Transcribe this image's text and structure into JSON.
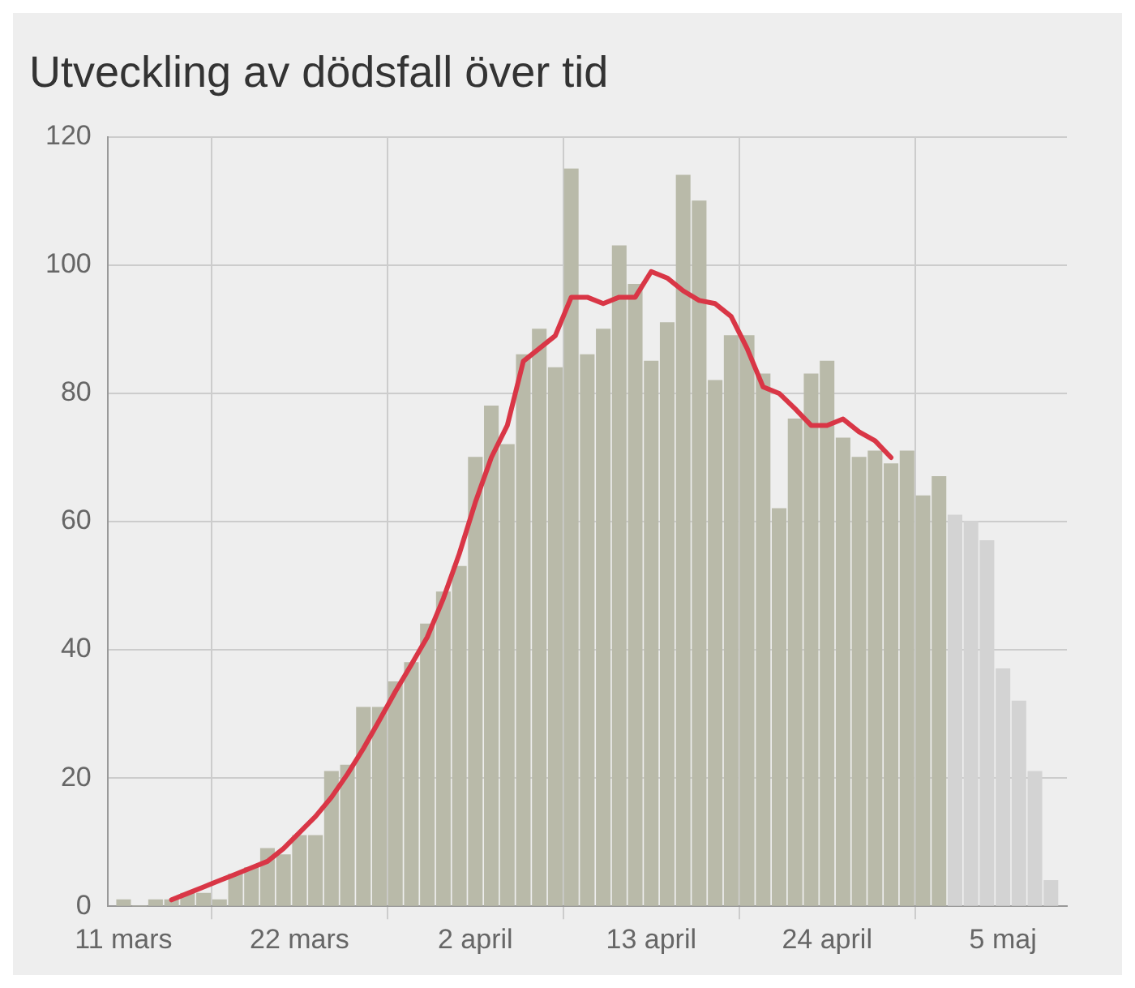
{
  "chart_data": {
    "type": "bar",
    "title": "Utveckling av dödsfall över tid",
    "x": [
      "--03-11",
      "--03-12",
      "--03-13",
      "--03-14",
      "--03-15",
      "--03-16",
      "--03-17",
      "--03-18",
      "--03-19",
      "--03-20",
      "--03-21",
      "--03-22",
      "--03-23",
      "--03-24",
      "--03-25",
      "--03-26",
      "--03-27",
      "--03-28",
      "--03-29",
      "--03-30",
      "--03-31",
      "--04-01",
      "--04-02",
      "--04-03",
      "--04-04",
      "--04-05",
      "--04-06",
      "--04-07",
      "--04-08",
      "--04-09",
      "--04-10",
      "--04-11",
      "--04-12",
      "--04-13",
      "--04-14",
      "--04-15",
      "--04-16",
      "--04-17",
      "--04-18",
      "--04-19",
      "--04-20",
      "--04-21",
      "--04-22",
      "--04-23",
      "--04-24",
      "--04-25",
      "--04-26",
      "--04-27",
      "--04-28",
      "--04-29",
      "--04-30",
      "--05-01",
      "--05-02",
      "--05-03",
      "--05-04",
      "--05-05",
      "--05-06",
      "--05-07",
      "--05-08"
    ],
    "series": [
      {
        "color": "#b9baa9",
        "values": [
          1,
          0,
          1,
          1,
          2,
          2,
          1,
          5,
          6,
          9,
          8,
          11,
          11,
          21,
          22,
          31,
          31,
          35,
          38,
          44,
          49,
          53,
          70,
          78,
          72,
          86,
          90,
          84,
          115,
          86,
          90,
          103,
          97,
          85,
          91,
          114,
          110,
          82,
          89,
          89,
          83,
          62,
          76,
          83,
          85,
          73,
          70,
          71,
          69,
          71,
          64,
          67,
          null,
          null,
          null,
          null,
          null,
          null,
          null
        ]
      },
      {
        "color": "#d3d3d3",
        "values": [
          null,
          null,
          null,
          null,
          null,
          null,
          null,
          null,
          null,
          null,
          null,
          null,
          null,
          null,
          null,
          null,
          null,
          null,
          null,
          null,
          null,
          null,
          null,
          null,
          null,
          null,
          null,
          null,
          null,
          null,
          null,
          null,
          null,
          null,
          null,
          null,
          null,
          null,
          null,
          null,
          null,
          null,
          null,
          null,
          null,
          null,
          null,
          null,
          null,
          null,
          null,
          null,
          61,
          60,
          57,
          37,
          32,
          21,
          4
        ]
      },
      {
        "type": "line",
        "color": "#d93646",
        "x": [
          "--03-14",
          "--03-15",
          "--03-16",
          "--03-17",
          "--03-18",
          "--03-19",
          "--03-20",
          "--03-21",
          "--03-22",
          "--03-23",
          "--03-24",
          "--03-25",
          "--03-26",
          "--03-27",
          "--03-28",
          "--03-29",
          "--03-30",
          "--03-31",
          "--04-01",
          "--04-02",
          "--04-03",
          "--04-04",
          "--04-05",
          "--04-06",
          "--04-07",
          "--04-08",
          "--04-09",
          "--04-10",
          "--04-11",
          "--04-12",
          "--04-13",
          "--04-14",
          "--04-15",
          "--04-16",
          "--04-17",
          "--04-18",
          "--04-19",
          "--04-20",
          "--04-21",
          "--04-22",
          "--04-23",
          "--04-24",
          "--04-25",
          "--04-26",
          "--04-27",
          "--04-28"
        ],
        "values": [
          1,
          2,
          3,
          4,
          5,
          6,
          7,
          9,
          11.5,
          14,
          17,
          20.6,
          24.6,
          29,
          33.5,
          37.7,
          42,
          48,
          55,
          63,
          70,
          75,
          85,
          87,
          89,
          95,
          95,
          94,
          95,
          95,
          99,
          98,
          96,
          94.5,
          94,
          92,
          87,
          81,
          80,
          77.6,
          75,
          75,
          76,
          74,
          72.6,
          70
        ]
      }
    ],
    "xlim": [
      "--03-10",
      "--05-09"
    ],
    "xticks": [
      {
        "value": "--03-11",
        "label": "11 mars"
      },
      {
        "value": "--03-22",
        "label": "22 mars"
      },
      {
        "value": "--04-02",
        "label": "2 april"
      },
      {
        "value": "--04-13",
        "label": "13 april"
      },
      {
        "value": "--04-24",
        "label": "24 april"
      },
      {
        "value": "--05-05",
        "label": "5 maj"
      }
    ],
    "ylim": [
      0,
      120
    ],
    "yticks": [
      0,
      20,
      40,
      60,
      80,
      100,
      120
    ],
    "grid": true,
    "legend": false,
    "marker": "none",
    "line_style": "solid"
  }
}
